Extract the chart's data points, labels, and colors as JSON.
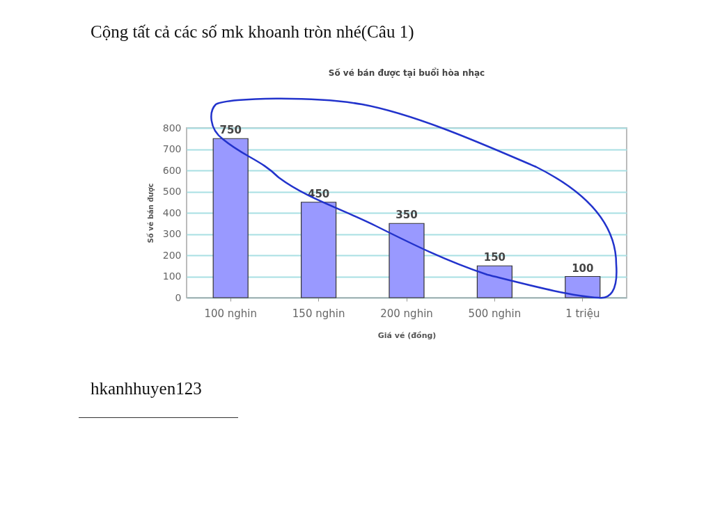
{
  "chart_data": {
    "type": "bar",
    "title": "Số vé bán được tại buổi hòa nhạc",
    "xlabel": "Giá vé (đồng)",
    "ylabel": "Số vé bán được",
    "categories": [
      "100 nghin",
      "150 nghin",
      "200 nghin",
      "500 nghin",
      "1 triệu"
    ],
    "values": [
      750,
      450,
      350,
      150,
      100
    ],
    "color": "#9999ff",
    "ylim": [
      0,
      800
    ],
    "yticks": [
      0,
      100,
      200,
      300,
      400,
      500,
      600,
      700,
      800
    ],
    "grid": "y",
    "data_labels": true,
    "annotations": [
      "Cộng tất cả các số mk khoanh tròn nhé(Câu 1)",
      "hkanhhuyen123"
    ]
  }
}
